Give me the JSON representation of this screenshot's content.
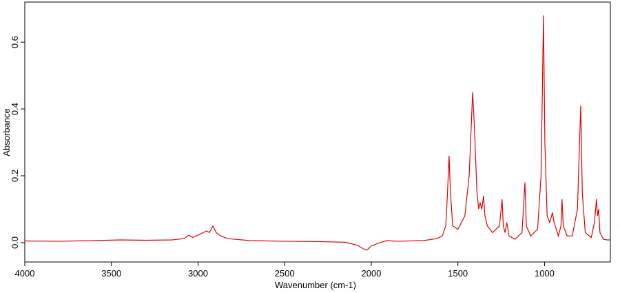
{
  "chart_data": {
    "type": "line",
    "x_label": "Wavenumber (cm-1)",
    "y_label": "Absorbance",
    "xlim": [
      4000,
      620
    ],
    "ylim": [
      -0.058,
      0.72
    ],
    "xticks": [
      4000,
      3500,
      3000,
      2500,
      2000,
      1500,
      1000
    ],
    "yticks": [
      {
        "value": 0,
        "label": "0.0"
      },
      0.2,
      0.4,
      0.6
    ],
    "x": [
      4000,
      3800,
      3600,
      3450,
      3300,
      3150,
      3080,
      3054,
      3030,
      2990,
      2970,
      2950,
      2935,
      2914,
      2895,
      2870,
      2830,
      2700,
      2500,
      2300,
      2150,
      2080,
      2040,
      2024,
      2000,
      1950,
      1910,
      1850,
      1700,
      1620,
      1590,
      1570,
      1560,
      1551,
      1543,
      1530,
      1500,
      1460,
      1435,
      1415,
      1405,
      1390,
      1380,
      1372,
      1362,
      1352,
      1344,
      1330,
      1300,
      1260,
      1245,
      1238,
      1228,
      1218,
      1205,
      1170,
      1130,
      1113,
      1105,
      1080,
      1040,
      1020,
      1006,
      998,
      985,
      970,
      954,
      945,
      920,
      905,
      899,
      892,
      870,
      840,
      810,
      791,
      782,
      765,
      730,
      712,
      700,
      694,
      688,
      680,
      660,
      640,
      620
    ],
    "series": [
      {
        "color": "#e00000",
        "values": [
          0.005,
          0.004,
          0.006,
          0.008,
          0.007,
          0.008,
          0.012,
          0.022,
          0.015,
          0.025,
          0.03,
          0.035,
          0.03,
          0.05,
          0.03,
          0.02,
          0.012,
          0.006,
          0.004,
          0.003,
          0.001,
          -0.008,
          -0.02,
          -0.022,
          -0.01,
          0.0,
          0.006,
          0.004,
          0.006,
          0.012,
          0.02,
          0.05,
          0.15,
          0.26,
          0.15,
          0.05,
          0.04,
          0.08,
          0.2,
          0.45,
          0.35,
          0.15,
          0.1,
          0.12,
          0.1,
          0.14,
          0.08,
          0.05,
          0.03,
          0.05,
          0.13,
          0.05,
          0.03,
          0.06,
          0.02,
          0.01,
          0.03,
          0.18,
          0.05,
          0.02,
          0.04,
          0.2,
          0.68,
          0.3,
          0.08,
          0.06,
          0.09,
          0.06,
          0.02,
          0.05,
          0.13,
          0.05,
          0.02,
          0.02,
          0.1,
          0.41,
          0.15,
          0.03,
          0.015,
          0.06,
          0.13,
          0.08,
          0.1,
          0.03,
          0.01,
          0.008,
          0.008
        ]
      }
    ]
  }
}
